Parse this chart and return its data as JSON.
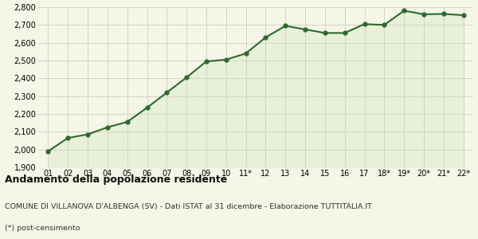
{
  "x_labels": [
    "01",
    "02",
    "03",
    "04",
    "05",
    "06",
    "07",
    "08",
    "09",
    "10",
    "11*",
    "12",
    "13",
    "14",
    "15",
    "16",
    "17",
    "18*",
    "19*",
    "20*",
    "21*",
    "22*"
  ],
  "y_values": [
    1990,
    2065,
    2085,
    2125,
    2155,
    2235,
    2320,
    2405,
    2495,
    2505,
    2540,
    2630,
    2695,
    2675,
    2655,
    2655,
    2705,
    2700,
    2780,
    2760,
    2762,
    2755
  ],
  "line_color": "#2d6a2d",
  "fill_color": "#e8f0d8",
  "marker": "o",
  "marker_size": 3.5,
  "line_width": 1.5,
  "ylim": [
    1900,
    2800
  ],
  "yticks": [
    1900,
    2000,
    2100,
    2200,
    2300,
    2400,
    2500,
    2600,
    2700,
    2800
  ],
  "title": "Andamento della popolazione residente",
  "subtitle": "COMUNE DI VILLANOVA D'ALBENGA (SV) - Dati ISTAT al 31 dicembre - Elaborazione TUTTITALIA.IT",
  "footnote": "(*) post-censimento",
  "bg_color": "#f5f5e8",
  "plot_bg_color": "#f5f5e8",
  "grid_color": "#d0d0c0",
  "title_fontsize": 9,
  "subtitle_fontsize": 6.8,
  "footnote_fontsize": 6.8,
  "tick_fontsize": 7
}
